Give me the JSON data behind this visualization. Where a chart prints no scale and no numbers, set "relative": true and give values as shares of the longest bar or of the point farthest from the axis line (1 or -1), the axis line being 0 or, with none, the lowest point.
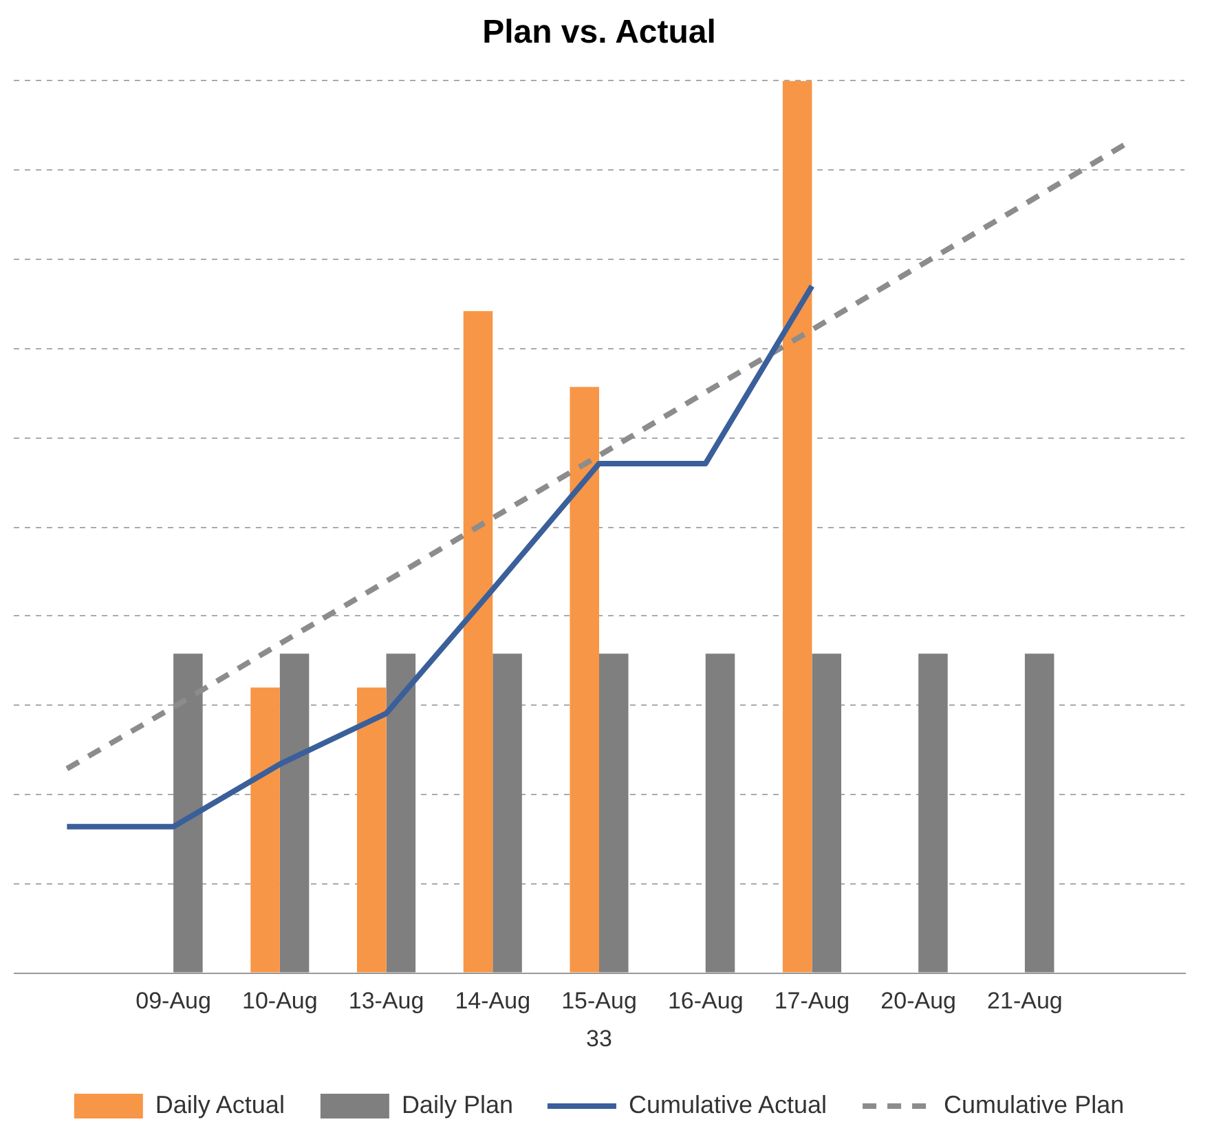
{
  "chart_data": {
    "type": "bar",
    "title": "Plan vs. Actual",
    "xlabel": "33",
    "relative": true,
    "grid": "y",
    "legend": "bottom",
    "marker": "none",
    "categories": [
      null,
      "09-Aug",
      "10-Aug",
      "13-Aug",
      "14-Aug",
      "15-Aug",
      "16-Aug",
      "17-Aug",
      "20-Aug",
      "21-Aug",
      null
    ],
    "series": [
      {
        "name": "Daily Actual",
        "color": "#f79646",
        "values": [
          null,
          null,
          0.32,
          0.32,
          0.742,
          0.657,
          null,
          1,
          null,
          null,
          null
        ]
      },
      {
        "name": "Daily Plan",
        "color": "#7f7f7f",
        "values": [
          null,
          0.358,
          0.358,
          0.358,
          0.358,
          0.358,
          0.358,
          0.358,
          0.358,
          0.358,
          null
        ]
      },
      {
        "name": "Cumulative Actual",
        "type": "line",
        "line_style": "solid",
        "color": "#3a5f9a",
        "values": [
          0.164,
          0.164,
          0.234,
          0.291,
          0.43,
          0.571,
          0.571,
          0.77,
          null,
          null,
          null
        ]
      },
      {
        "name": "Cumulative Plan",
        "type": "line",
        "line_style": "dashed",
        "color": "#8c8c8c",
        "values": [
          0.229,
          0.298,
          0.369,
          0.439,
          0.51,
          0.58,
          0.651,
          0.721,
          0.792,
          0.862,
          0.933
        ]
      }
    ]
  }
}
